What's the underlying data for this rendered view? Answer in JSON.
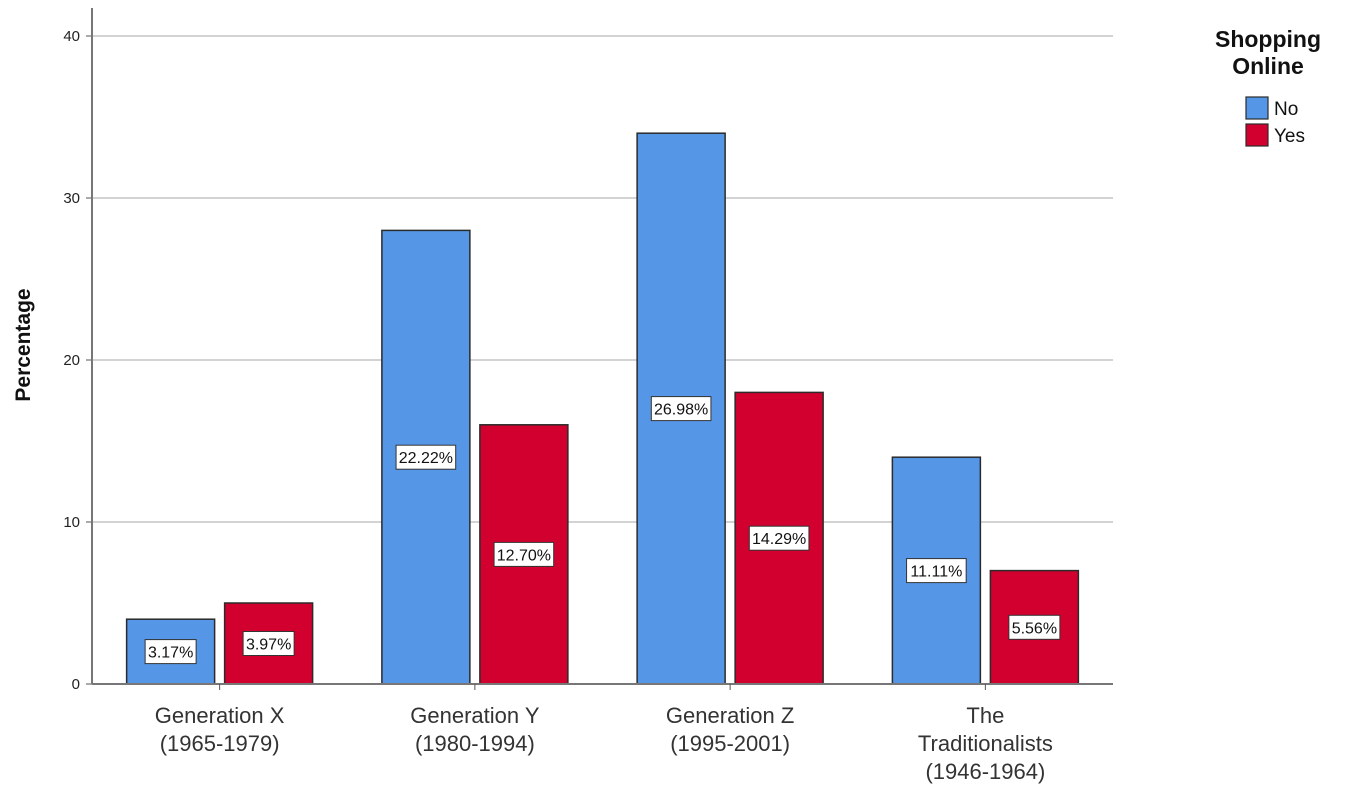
{
  "chart_data": {
    "type": "bar",
    "title": "",
    "xlabel": "",
    "ylabel": "Percentage",
    "ylim": [
      0,
      42
    ],
    "yticks": [
      0,
      10,
      20,
      30,
      40
    ],
    "grid": true,
    "legend_position": "top-right",
    "legend_title": [
      "Shopping",
      "Online"
    ],
    "categories": [
      [
        "Generation X",
        "(1965-1979)"
      ],
      [
        "Generation Y",
        "(1980-1994)"
      ],
      [
        "Generation Z",
        "(1995-2001)"
      ],
      [
        "The",
        "Traditionalists",
        "(1946-1964)"
      ]
    ],
    "series": [
      {
        "name": "No",
        "color": "#5596E6",
        "values": [
          4,
          28,
          34,
          14
        ],
        "labels": [
          "3.17%",
          "22.22%",
          "26.98%",
          "11.11%"
        ]
      },
      {
        "name": "Yes",
        "color": "#D2002E",
        "values": [
          5,
          16,
          18,
          7
        ],
        "labels": [
          "3.97%",
          "12.70%",
          "14.29%",
          "5.56%"
        ]
      }
    ]
  }
}
